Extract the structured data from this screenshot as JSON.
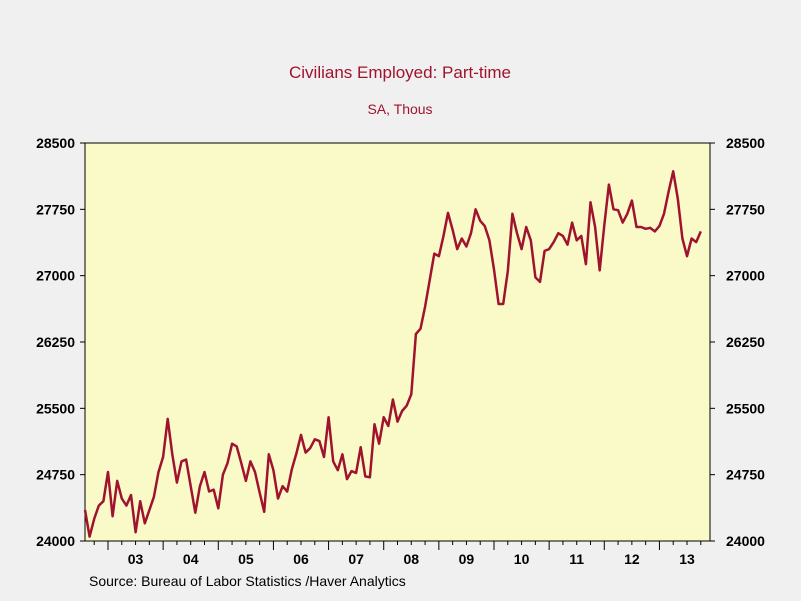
{
  "chart_data": {
    "type": "line",
    "title": "Civilians Employed: Part-time",
    "subtitle": "SA, Thous",
    "source": "Source:  Bureau of Labor Statistics /Haver Analytics",
    "ylim": [
      24000,
      28500
    ],
    "yticks": [
      "24000",
      "24750",
      "25500",
      "26250",
      "27000",
      "27750",
      "28500"
    ],
    "xlim": [
      2002.583,
      2013.917
    ],
    "xticks": [
      "03",
      "04",
      "05",
      "06",
      "07",
      "08",
      "09",
      "10",
      "11",
      "12",
      "13"
    ],
    "colors": {
      "line": "#a0132e",
      "plot_bg": "#fafac8",
      "page_bg": "#f0f0f0"
    },
    "grid": false,
    "series": [
      {
        "start": "2002-08",
        "frequency": "monthly",
        "values": [
          24350,
          24050,
          24250,
          24400,
          24450,
          24780,
          24280,
          24680,
          24480,
          24400,
          24520,
          24100,
          24450,
          24200,
          24350,
          24500,
          24780,
          24950,
          25380,
          24980,
          24660,
          24900,
          24920,
          24620,
          24320,
          24620,
          24780,
          24560,
          24580,
          24370,
          24750,
          24880,
          25100,
          25070,
          24880,
          24680,
          24900,
          24780,
          24550,
          24330,
          24980,
          24800,
          24480,
          24620,
          24560,
          24810,
          24990,
          25200,
          25000,
          25050,
          25150,
          25130,
          24950,
          25400,
          24900,
          24800,
          24980,
          24700,
          24790,
          24770,
          25060,
          24730,
          24720,
          25320,
          25100,
          25400,
          25300,
          25600,
          25350,
          25470,
          25530,
          25660,
          26340,
          26400,
          26650,
          26950,
          27250,
          27220,
          27450,
          27710,
          27520,
          27300,
          27420,
          27330,
          27480,
          27750,
          27620,
          27560,
          27400,
          27070,
          26680,
          26680,
          27050,
          27700,
          27480,
          27300,
          27550,
          27400,
          26980,
          26930,
          27280,
          27300,
          27380,
          27480,
          27450,
          27350,
          27600,
          27400,
          27450,
          27130,
          27830,
          27550,
          27060,
          27570,
          28030,
          27750,
          27740,
          27600,
          27700,
          27850,
          27550,
          27550,
          27530,
          27540,
          27500,
          27560,
          27700,
          27950,
          28180,
          27870,
          27420,
          27220,
          27420,
          27380,
          27500
        ]
      }
    ]
  }
}
